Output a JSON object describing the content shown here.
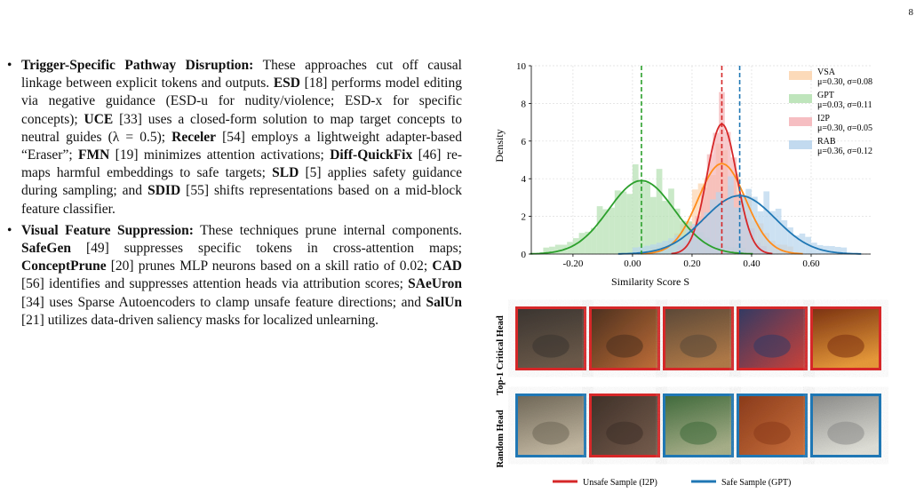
{
  "page_number": "8",
  "sections": [
    {
      "heading": "Trigger-Specific Pathway Disruption:",
      "segments": [
        {
          "t": " These approaches cut off causal linkage between explicit tokens and outputs. ",
          "b": false
        },
        {
          "t": "ESD",
          "b": true
        },
        {
          "t": " [18] performs model editing via negative guidance (ESD-u for nudity/violence; ESD-x for specific concepts); ",
          "b": false
        },
        {
          "t": "UCE",
          "b": true
        },
        {
          "t": " [33] uses a closed-form solution to map target concepts to neutral guides (λ = 0.5); ",
          "b": false
        },
        {
          "t": "Receler",
          "b": true
        },
        {
          "t": " [54] employs a lightweight adapter-based “Eraser”; ",
          "b": false
        },
        {
          "t": "FMN",
          "b": true
        },
        {
          "t": " [19] minimizes attention activations; ",
          "b": false
        },
        {
          "t": "Diff-QuickFix",
          "b": true
        },
        {
          "t": " [46] re-maps harmful embeddings to safe targets; ",
          "b": false
        },
        {
          "t": "SLD",
          "b": true
        },
        {
          "t": " [5] applies safety guidance during sampling; and ",
          "b": false
        },
        {
          "t": "SDID",
          "b": true
        },
        {
          "t": " [55] shifts representations based on a mid-block feature classifier.",
          "b": false
        }
      ]
    },
    {
      "heading": "Visual Feature Suppression:",
      "segments": [
        {
          "t": " These techniques prune internal components. ",
          "b": false
        },
        {
          "t": "SafeGen",
          "b": true
        },
        {
          "t": " [49] suppresses specific tokens in cross-attention maps; ",
          "b": false
        },
        {
          "t": "ConceptPrune",
          "b": true
        },
        {
          "t": " [20] prunes MLP neurons based on a skill ratio of 0.02; ",
          "b": false
        },
        {
          "t": "CAD",
          "b": true
        },
        {
          "t": " [56] identifies and suppresses attention heads via attribution scores; ",
          "b": false
        },
        {
          "t": "SAeUron",
          "b": true
        },
        {
          "t": " [34] uses Sparse Autoencoders to clamp unsafe feature directions; and ",
          "b": false
        },
        {
          "t": "SalUn",
          "b": true
        },
        {
          "t": " [21] utilizes data-driven saliency masks for localized unlearning.",
          "b": false
        }
      ]
    }
  ],
  "chart_data": {
    "type": "histogram-kde",
    "xlabel": "Similarity Score S",
    "ylabel": "Density",
    "xticks": [
      "-0.20",
      "0.00",
      "0.20",
      "0.40",
      "0.60"
    ],
    "yticks": [
      "0",
      "2",
      "4",
      "6",
      "8",
      "10"
    ],
    "xlim": [
      -0.34,
      0.8
    ],
    "ylim": [
      0,
      10
    ],
    "grid": true,
    "legend_position": "top-right",
    "series": [
      {
        "name": "VSA",
        "stats": "μ=0.30, σ=0.08",
        "color": "#ff8c1a",
        "fill": "#fcd3ad",
        "mean": 0.3,
        "sd": 0.08,
        "peak": 4.8
      },
      {
        "name": "GPT",
        "stats": "μ=0.03, σ=0.11",
        "color": "#2ca02c",
        "fill": "#b4e0b0",
        "mean": 0.03,
        "sd": 0.11,
        "peak": 3.9
      },
      {
        "name": "I2P",
        "stats": "μ=0.30, σ=0.05",
        "color": "#d62728",
        "fill": "#f4b3b7",
        "mean": 0.3,
        "sd": 0.05,
        "peak": 6.9
      },
      {
        "name": "RAB",
        "stats": "μ=0.36, σ=0.12",
        "color": "#1f77b4",
        "fill": "#b7d4ec",
        "mean": 0.36,
        "sd": 0.12,
        "peak": 3.1
      }
    ]
  },
  "image_grid": {
    "row_labels": [
      "Top-1 Critical Head",
      "Random Head"
    ],
    "rows": [
      [
        "#d62728",
        "#d62728",
        "#d62728",
        "#d62728",
        "#d62728"
      ],
      [
        "#1f77b4",
        "#d62728",
        "#1f77b4",
        "#1f77b4",
        "#1f77b4"
      ]
    ],
    "legend": [
      {
        "label": "Unsafe Sample (I2P)",
        "color": "#d62728"
      },
      {
        "label": "Safe Sample (GPT)",
        "color": "#1f77b4"
      }
    ]
  }
}
